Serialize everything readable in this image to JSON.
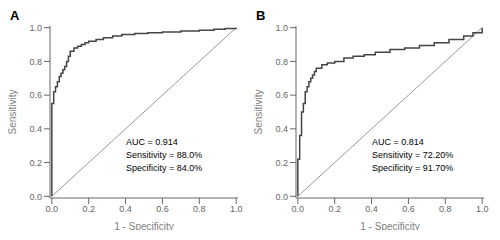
{
  "chart_data": [
    {
      "type": "line",
      "title": "A",
      "annotation": "AUC = 0.914\nSensitivity = 88.0%\nSpecificity = 84.0%",
      "x_label": "1 - Specificity",
      "y_label": "Sensitivity",
      "xlim": [
        -0.01,
        1.01
      ],
      "ylim": [
        -0.01,
        1.01
      ],
      "xticks": [
        {
          "value": 0.0,
          "label": "0.0"
        },
        0.2,
        0.4,
        0.6,
        0.8,
        {
          "value": 1.0,
          "label": "1.0"
        }
      ],
      "yticks": [
        {
          "value": 0.0,
          "label": "0.0"
        },
        0.2,
        0.4,
        0.6,
        0.8,
        {
          "value": 1.0,
          "label": "1.0"
        }
      ],
      "grid": false,
      "series": [
        {
          "type": "line",
          "color": "#999999",
          "x": [
            0,
            1
          ],
          "values": [
            0,
            1
          ]
        },
        {
          "type": "step",
          "color": "#444444",
          "x": [
            0.0,
            0.0,
            0.0,
            0.01,
            0.01,
            0.02,
            0.02,
            0.03,
            0.03,
            0.04,
            0.04,
            0.05,
            0.05,
            0.06,
            0.06,
            0.07,
            0.07,
            0.08,
            0.08,
            0.09,
            0.09,
            0.1,
            0.1,
            0.12,
            0.12,
            0.14,
            0.14,
            0.16,
            0.16,
            0.18,
            0.18,
            0.2,
            0.2,
            0.24,
            0.24,
            0.28,
            0.28,
            0.33,
            0.33,
            0.38,
            0.38,
            0.45,
            0.45,
            0.52,
            0.52,
            0.6,
            0.6,
            0.7,
            0.7,
            0.8,
            0.8,
            0.88,
            0.88,
            0.94,
            0.94,
            1.0
          ],
          "values": [
            0.0,
            0.5,
            0.55,
            0.55,
            0.62,
            0.62,
            0.65,
            0.65,
            0.68,
            0.68,
            0.71,
            0.71,
            0.73,
            0.73,
            0.75,
            0.75,
            0.77,
            0.77,
            0.8,
            0.8,
            0.83,
            0.83,
            0.86,
            0.86,
            0.88,
            0.88,
            0.89,
            0.89,
            0.9,
            0.9,
            0.91,
            0.91,
            0.92,
            0.92,
            0.93,
            0.93,
            0.94,
            0.94,
            0.95,
            0.95,
            0.96,
            0.96,
            0.965,
            0.965,
            0.97,
            0.97,
            0.975,
            0.975,
            0.98,
            0.98,
            0.985,
            0.985,
            0.99,
            0.99,
            0.995,
            1.0
          ]
        }
      ]
    },
    {
      "type": "line",
      "title": "B",
      "annotation": "AUC = 0.814\nSensitivity = 72.20%\nSpecificity = 91.70%",
      "x_label": "1 - Specificity",
      "y_label": "Sensitivity",
      "xlim": [
        -0.01,
        1.01
      ],
      "ylim": [
        -0.01,
        1.01
      ],
      "xticks": [
        {
          "value": 0.0,
          "label": "0.0"
        },
        0.2,
        0.4,
        0.6,
        0.8,
        {
          "value": 1.0,
          "label": "1.0"
        }
      ],
      "yticks": [
        {
          "value": 0.0,
          "label": "0.0"
        },
        0.2,
        0.4,
        0.6,
        0.8,
        {
          "value": 1.0,
          "label": "1.0"
        }
      ],
      "grid": false,
      "series": [
        {
          "type": "line",
          "color": "#999999",
          "x": [
            0,
            1
          ],
          "values": [
            0,
            1
          ]
        },
        {
          "type": "step",
          "color": "#444444",
          "x": [
            0.0,
            0.0,
            0.0,
            0.01,
            0.01,
            0.02,
            0.02,
            0.03,
            0.03,
            0.04,
            0.04,
            0.05,
            0.05,
            0.06,
            0.06,
            0.07,
            0.07,
            0.08,
            0.08,
            0.09,
            0.09,
            0.1,
            0.1,
            0.13,
            0.13,
            0.16,
            0.16,
            0.2,
            0.2,
            0.25,
            0.25,
            0.3,
            0.3,
            0.36,
            0.36,
            0.42,
            0.42,
            0.5,
            0.5,
            0.58,
            0.58,
            0.66,
            0.66,
            0.74,
            0.74,
            0.82,
            0.82,
            0.9,
            0.9,
            0.95,
            0.95,
            1.0
          ],
          "values": [
            0.0,
            0.12,
            0.22,
            0.22,
            0.36,
            0.36,
            0.5,
            0.5,
            0.55,
            0.55,
            0.62,
            0.62,
            0.65,
            0.65,
            0.68,
            0.68,
            0.7,
            0.7,
            0.72,
            0.72,
            0.74,
            0.74,
            0.76,
            0.76,
            0.78,
            0.78,
            0.79,
            0.79,
            0.8,
            0.8,
            0.82,
            0.82,
            0.83,
            0.83,
            0.84,
            0.84,
            0.855,
            0.855,
            0.87,
            0.87,
            0.88,
            0.88,
            0.895,
            0.895,
            0.91,
            0.91,
            0.93,
            0.93,
            0.95,
            0.95,
            0.97,
            1.0
          ]
        }
      ]
    }
  ]
}
